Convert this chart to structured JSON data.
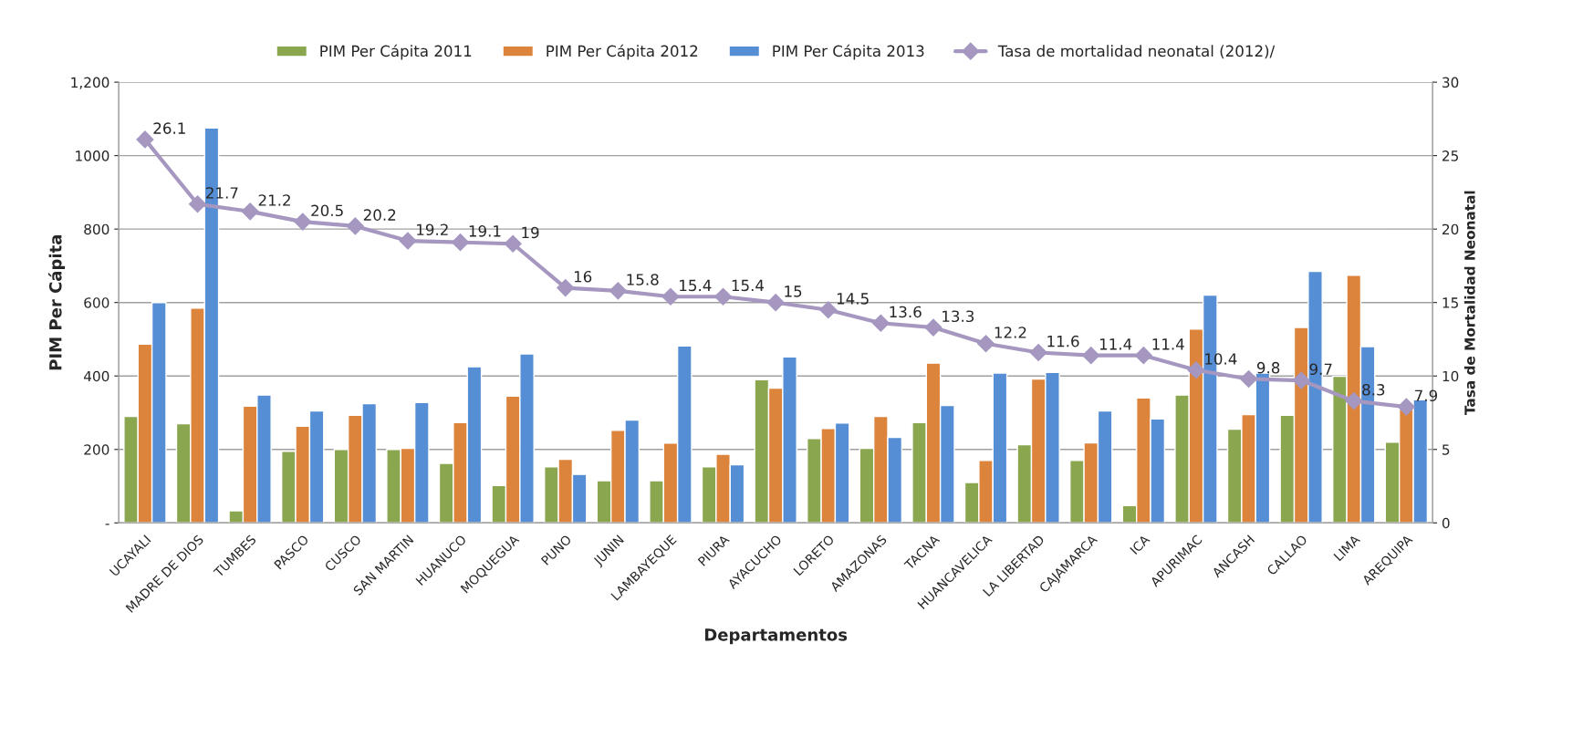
{
  "chart_data": {
    "type": "bar",
    "xlabel": "Departamentos",
    "ylabel": "PIM Per Cápita",
    "y2label": "Tasa de Mortalidad Neonatal",
    "categories": [
      "UCAYALI",
      "MADRE DE DIOS",
      "TUMBES",
      "PASCO",
      "CUSCO",
      "SAN MARTIN",
      "HUANUCO",
      "MOQUEGUA",
      "PUNO",
      "JUNIN",
      "LAMBAYEQUE",
      "PIURA",
      "AYACUCHO",
      "LORETO",
      "AMAZONAS",
      "TACNA",
      "HUANCAVELICA",
      "LA LIBERTAD",
      "CAJAMARCA",
      "ICA",
      "APURIMAC",
      "ANCASH",
      "CALLAO",
      "LIMA",
      "AREQUIPA"
    ],
    "series": [
      {
        "name": "PIM Per Cápita 2011",
        "color": "#8aa64e",
        "values": [
          290,
          270,
          33,
          195,
          200,
          200,
          162,
          102,
          153,
          115,
          115,
          153,
          390,
          230,
          203,
          273,
          110,
          213,
          170,
          47,
          348,
          255,
          293,
          399,
          220
        ]
      },
      {
        "name": "PIM Per Cápita 2012",
        "color": "#dd843c",
        "values": [
          487,
          585,
          318,
          263,
          293,
          203,
          273,
          345,
          173,
          252,
          217,
          187,
          367,
          257,
          290,
          435,
          170,
          392,
          218,
          340,
          528,
          295,
          532,
          674,
          310
        ]
      },
      {
        "name": "PIM Per Cápita 2013",
        "color": "#558ed5",
        "values": [
          600,
          1075,
          348,
          305,
          325,
          328,
          425,
          460,
          132,
          280,
          482,
          158,
          452,
          272,
          233,
          320,
          408,
          410,
          305,
          283,
          620,
          408,
          685,
          480,
          335
        ]
      },
      {
        "name": "Tasa de mortalidad neonatal (2012)/",
        "type": "line",
        "axis": "y2",
        "color": "#a597c0",
        "marker": "diamond",
        "values": [
          26.1,
          21.7,
          21.2,
          20.5,
          20.2,
          19.2,
          19.1,
          19,
          16,
          15.8,
          15.4,
          15.4,
          15,
          14.5,
          13.6,
          13.3,
          12.2,
          11.6,
          11.4,
          11.4,
          10.4,
          9.8,
          9.7,
          8.3,
          7.9
        ],
        "value_labels": [
          "26.1",
          "21.7",
          "21.2",
          "20.5",
          "20.2",
          "19.2",
          "19.1",
          "19",
          "16",
          "15.8",
          "15.4",
          "15.4",
          "15",
          "14.5",
          "13.6",
          "13.3",
          "12.2",
          "11.6",
          "11.4",
          "11.4",
          "10.4",
          "9.8",
          "9.7",
          "8.3",
          "7.9"
        ]
      }
    ],
    "ylim": [
      0,
      1200
    ],
    "yticks": [
      {
        "value": 0,
        "label": "-"
      },
      200,
      400,
      600,
      800,
      1000,
      {
        "value": 1200,
        "label": "1,200"
      }
    ],
    "y2lim": [
      0,
      30
    ],
    "y2ticks": [
      0,
      5,
      10,
      15,
      20,
      25,
      30
    ],
    "grid": "y",
    "legend": "top"
  }
}
